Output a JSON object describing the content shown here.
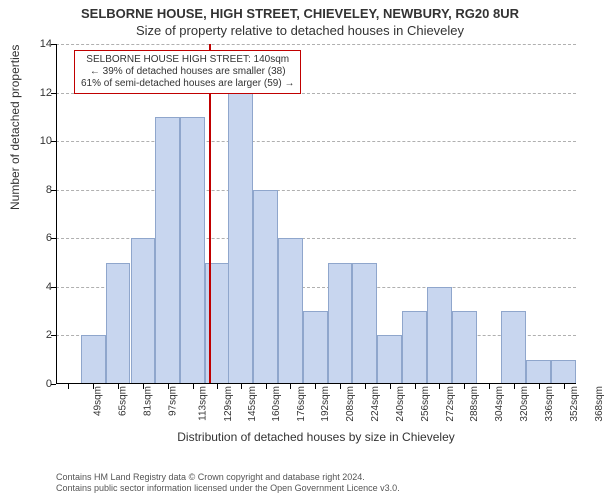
{
  "title_line1": "SELBORNE HOUSE, HIGH STREET, CHIEVELEY, NEWBURY, RG20 8UR",
  "title_line2": "Size of property relative to detached houses in Chieveley",
  "y_label": "Number of detached properties",
  "x_label": "Distribution of detached houses by size in Chieveley",
  "footer_line1": "Contains HM Land Registry data © Crown copyright and database right 2024.",
  "footer_line2": "Contains public sector information licensed under the Open Government Licence v3.0.",
  "legend": {
    "line1": "SELBORNE HOUSE HIGH STREET: 140sqm",
    "line2": "← 39% of detached houses are smaller (38)",
    "line3": "61% of semi-detached houses are larger (59) →",
    "border_color": "#c00000"
  },
  "chart": {
    "type": "histogram",
    "y_max": 14,
    "y_ticks": [
      0,
      2,
      4,
      6,
      8,
      10,
      12,
      14
    ],
    "x_min": 41,
    "x_max": 376,
    "x_ticks": [
      49,
      65,
      81,
      97,
      113,
      129,
      145,
      160,
      176,
      192,
      208,
      224,
      240,
      256,
      272,
      288,
      304,
      320,
      336,
      352,
      368
    ],
    "x_tick_suffix": "sqm",
    "bar_color": "#c8d6ef",
    "bar_border_color": "#8fa6cc",
    "background_color": "#ffffff",
    "grid_color": "#b0b0b0",
    "axis_color": "#000000",
    "bar_width_units": 16,
    "bars": [
      {
        "x": 49,
        "h": 0
      },
      {
        "x": 65,
        "h": 2
      },
      {
        "x": 81,
        "h": 5
      },
      {
        "x": 97,
        "h": 6
      },
      {
        "x": 113,
        "h": 11
      },
      {
        "x": 129,
        "h": 11
      },
      {
        "x": 145,
        "h": 5
      },
      {
        "x": 160,
        "h": 12
      },
      {
        "x": 176,
        "h": 8
      },
      {
        "x": 192,
        "h": 6
      },
      {
        "x": 208,
        "h": 3
      },
      {
        "x": 224,
        "h": 5
      },
      {
        "x": 240,
        "h": 5
      },
      {
        "x": 256,
        "h": 2
      },
      {
        "x": 272,
        "h": 3
      },
      {
        "x": 288,
        "h": 4
      },
      {
        "x": 304,
        "h": 3
      },
      {
        "x": 320,
        "h": 0
      },
      {
        "x": 336,
        "h": 3
      },
      {
        "x": 352,
        "h": 1
      },
      {
        "x": 368,
        "h": 1
      }
    ],
    "marker": {
      "x": 140,
      "color": "#c00000",
      "width": 2
    }
  }
}
